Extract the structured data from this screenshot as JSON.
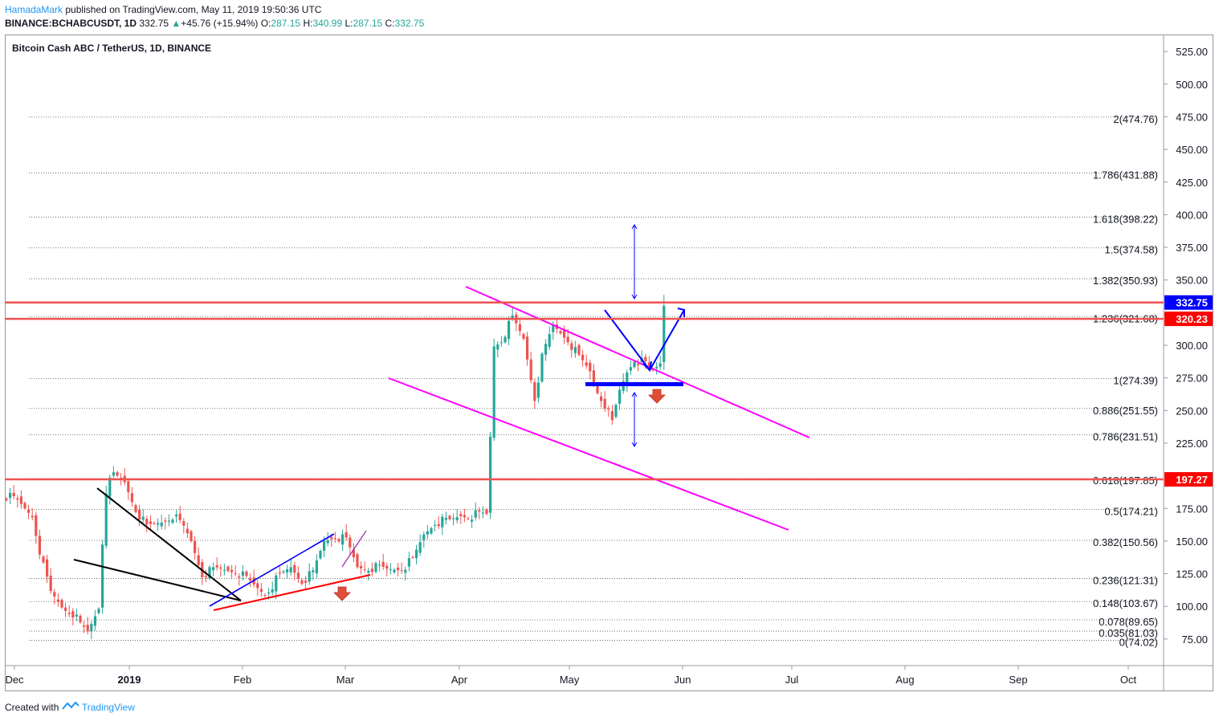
{
  "header": {
    "author": "HamadaMark",
    "published_text": "published on TradingView.com, May 11, 2019 19:50:36 UTC",
    "symbol": "BINANCE:BCHABCUSDT, 1D",
    "last": "332.75",
    "change_arrow": "▲",
    "change": "+45.76 (+15.94%)",
    "o_label": "O:",
    "o_value": "287.15",
    "h_label": "H:",
    "h_value": "340.99",
    "l_label": "L:",
    "l_value": "287.15",
    "c_label": "C:",
    "c_value": "332.75"
  },
  "chart_data": {
    "type": "candlestick",
    "title": "Bitcoin Cash ABC / TetherUS, 1D, BINANCE",
    "x_labels": [
      "Dec",
      "2019",
      "Feb",
      "Mar",
      "Apr",
      "May",
      "Jun",
      "Jul",
      "Aug",
      "Sep",
      "Oct"
    ],
    "y_ticks": [
      "75.00",
      "100.00",
      "125.00",
      "150.00",
      "175.00",
      "225.00",
      "250.00",
      "275.00",
      "300.00",
      "350.00",
      "375.00",
      "400.00",
      "425.00",
      "450.00",
      "475.00",
      "500.00",
      "525.00"
    ],
    "ylim": [
      61,
      543
    ],
    "fib_levels": [
      {
        "label": "2(474.76)",
        "value": 474.76
      },
      {
        "label": "1.786(431.88)",
        "value": 431.88
      },
      {
        "label": "1.618(398.22)",
        "value": 398.22
      },
      {
        "label": "1.5(374.58)",
        "value": 374.58
      },
      {
        "label": "1.382(350.93)",
        "value": 350.93
      },
      {
        "label": "1.236(321.68)",
        "value": 321.68
      },
      {
        "label": "1(274.39)",
        "value": 274.39
      },
      {
        "label": "0.886(251.55)",
        "value": 251.55
      },
      {
        "label": "0.786(231.51)",
        "value": 231.51
      },
      {
        "label": "0.618(197.85)",
        "value": 197.85
      },
      {
        "label": "0.5(174.21)",
        "value": 174.21
      },
      {
        "label": "0.382(150.56)",
        "value": 150.56
      },
      {
        "label": "0.236(121.31)",
        "value": 121.31
      },
      {
        "label": "0.148(103.67)",
        "value": 103.67
      },
      {
        "label": "0.078(89.65)",
        "value": 89.65
      },
      {
        "label": "0.035(81.03)",
        "value": 81.03
      },
      {
        "label": "0(74.02)",
        "value": 74.02
      }
    ],
    "horizontal_lines": [
      {
        "label": "332.75",
        "value": 332.75,
        "color": "#0000ff"
      },
      {
        "label": "320.23",
        "value": 320.23,
        "color": "#ff0000"
      },
      {
        "label": "197.27",
        "value": 197.27,
        "color": "#ff0000"
      }
    ],
    "colors": {
      "up": "#26a69a",
      "down": "#ef5350",
      "resistance": "#ef5350",
      "channel": "#ff00ff",
      "projection": "#0000ff"
    }
  },
  "footer": {
    "created_with": "Created with",
    "brand": "TradingView"
  }
}
